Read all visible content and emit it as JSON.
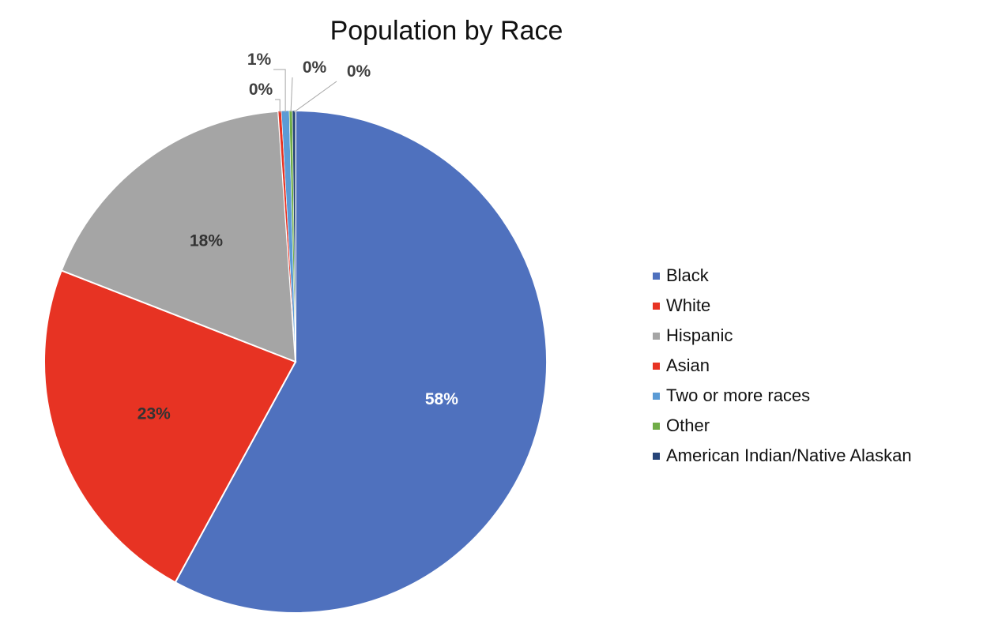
{
  "chart_data": {
    "type": "pie",
    "title": "Population by Race",
    "slices": [
      {
        "label": "Black",
        "value": 58.0,
        "display": "58%",
        "color": "#4f71be"
      },
      {
        "label": "White",
        "value": 23.0,
        "display": "23%",
        "color": "#e73323"
      },
      {
        "label": "Hispanic",
        "value": 18.0,
        "display": "18%",
        "color": "#a5a5a5"
      },
      {
        "label": "Asian",
        "value": 0.2,
        "display": "0%",
        "color": "#e73323"
      },
      {
        "label": "Two or more races",
        "value": 0.5,
        "display": "1%",
        "color": "#5b9bd5"
      },
      {
        "label": "Other",
        "value": 0.2,
        "display": "0%",
        "color": "#70ad47"
      },
      {
        "label": "American Indian/Native Alaskan",
        "value": 0.2,
        "display": "0%",
        "color": "#264478"
      }
    ],
    "start_angle": "12 o'clock",
    "direction": "clockwise",
    "legend": {
      "position": "right"
    }
  }
}
